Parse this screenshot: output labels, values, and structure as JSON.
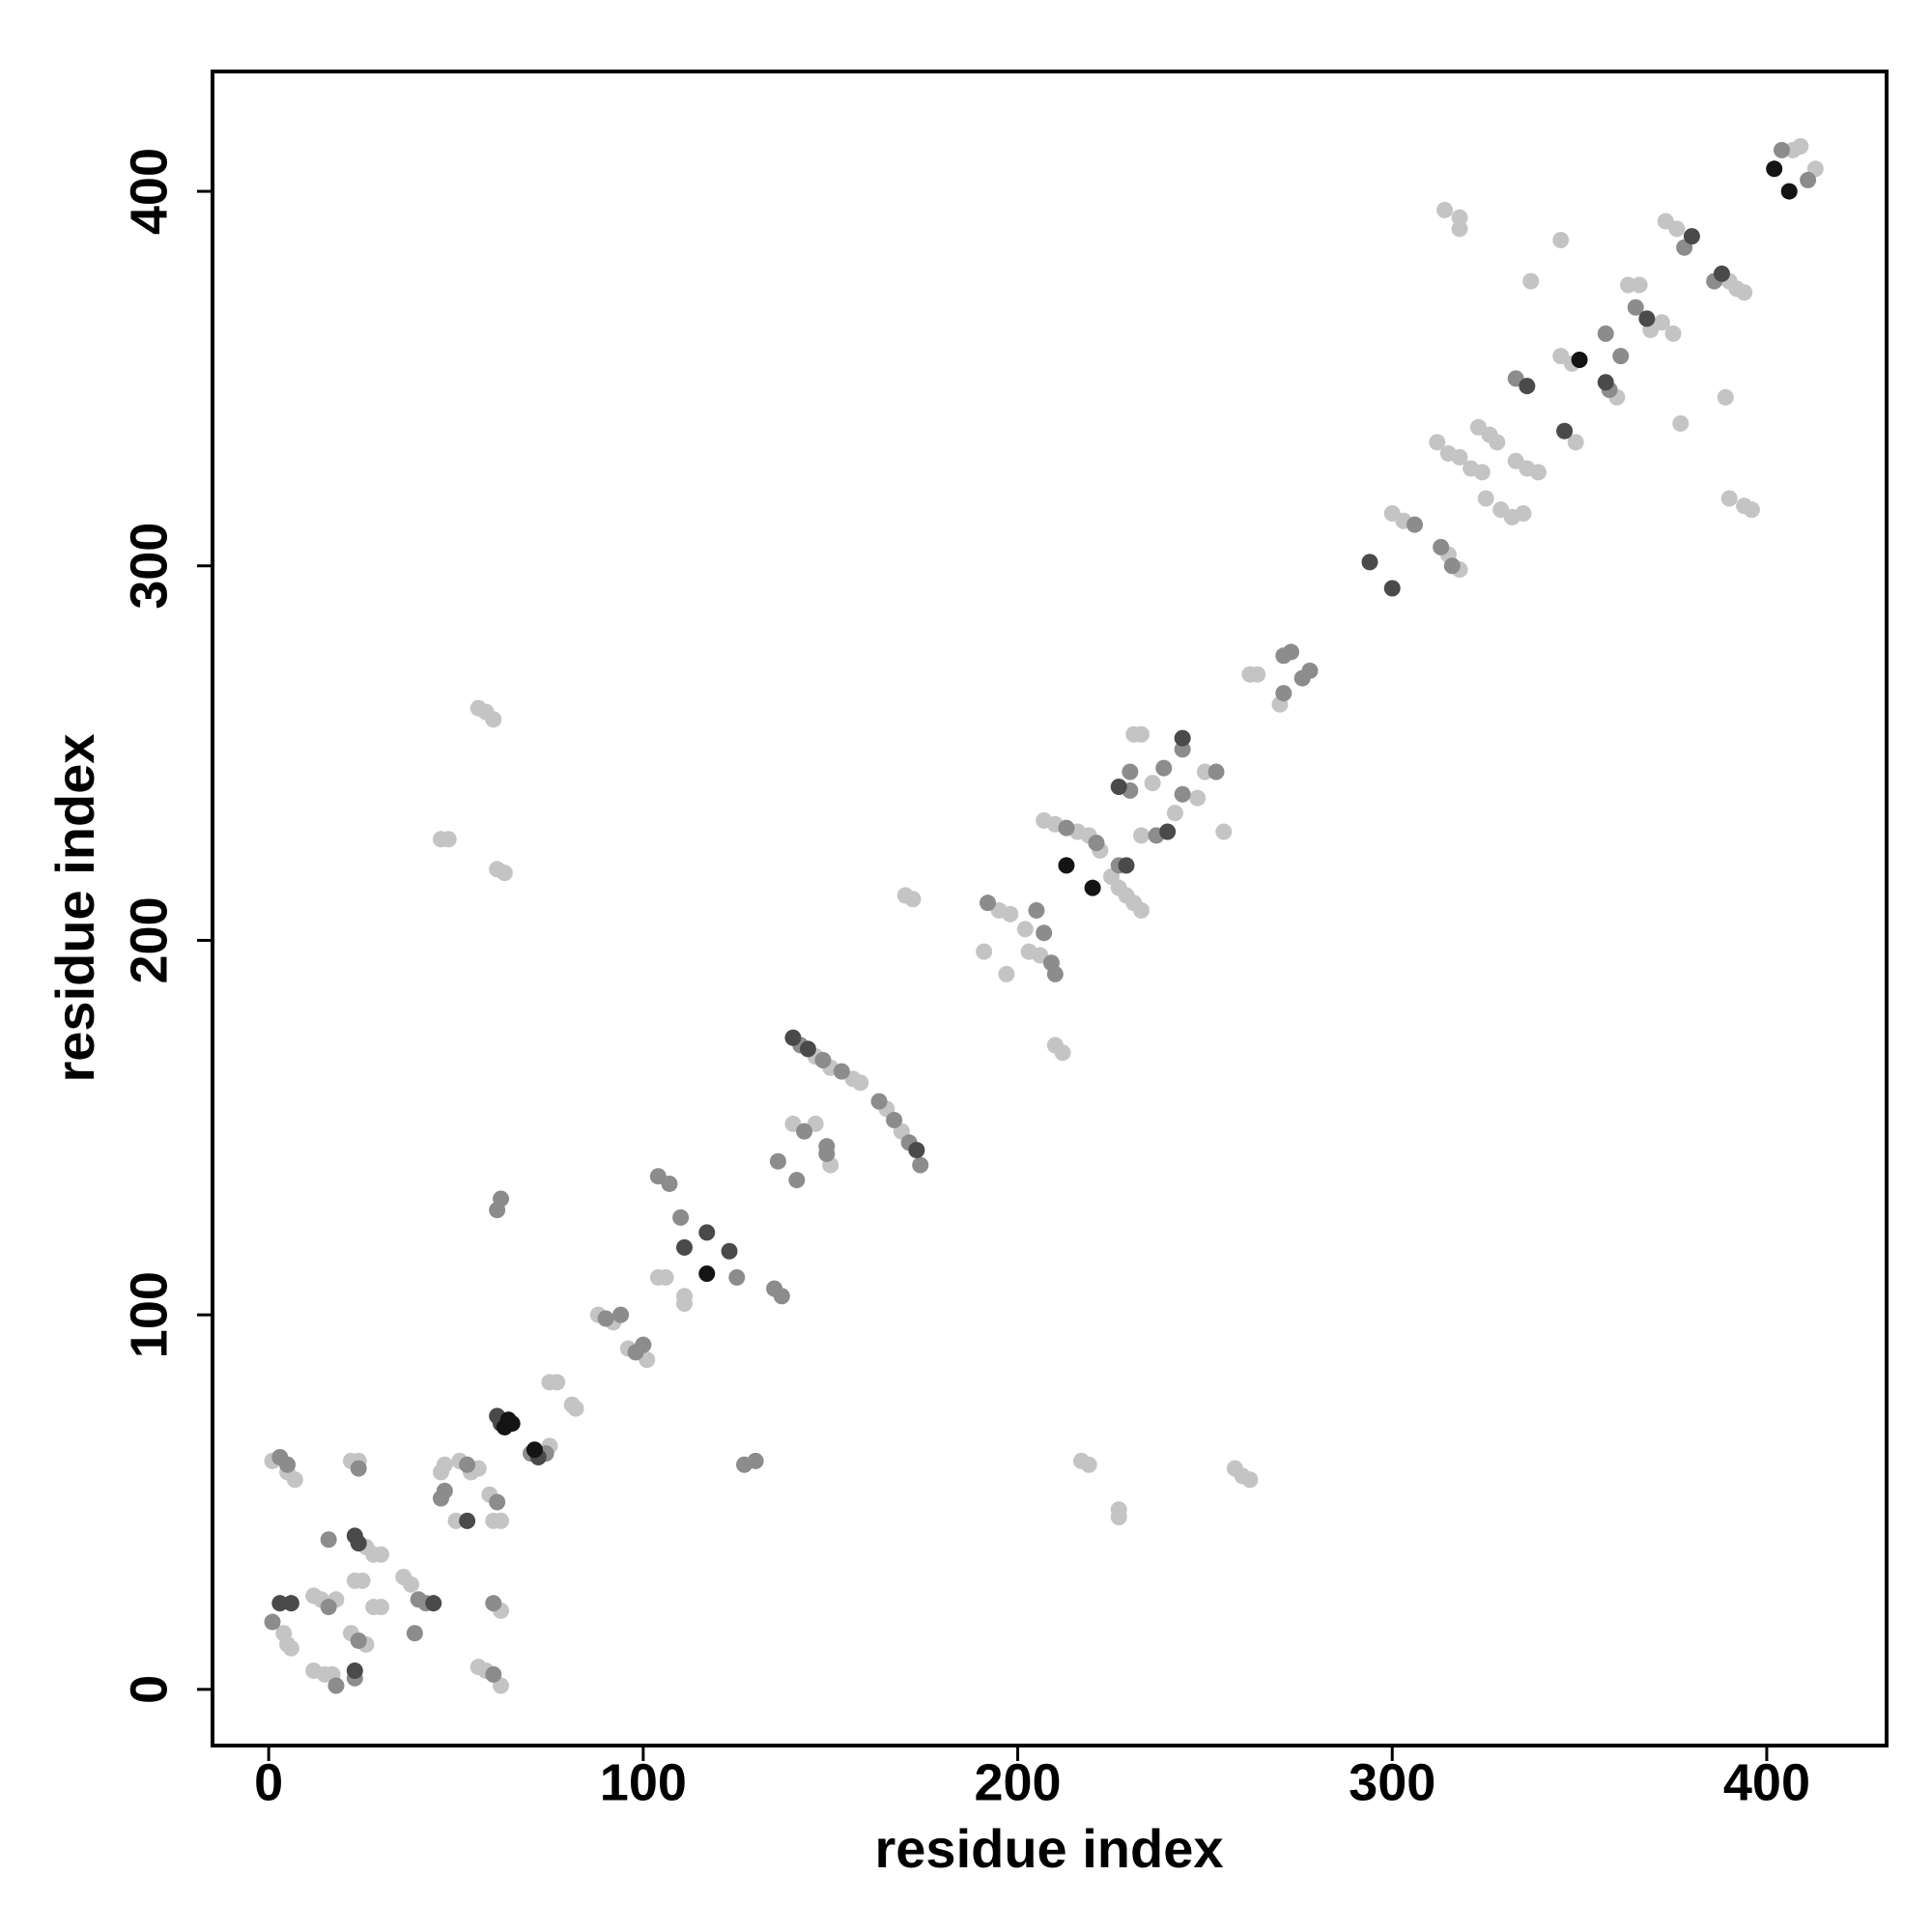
{
  "chart_data": {
    "type": "scatter",
    "xlabel": "residue index",
    "ylabel": "residue index",
    "xlim": [
      -15,
      432
    ],
    "ylim": [
      -15,
      432
    ],
    "xticks": [
      0,
      100,
      200,
      300,
      400
    ],
    "yticks": [
      0,
      100,
      200,
      300,
      400
    ],
    "grid": false,
    "series": [
      {
        "color": "#c4c4c4",
        "x": [
          1,
          5,
          7,
          5,
          4,
          6,
          12,
          14,
          18,
          12,
          15,
          17,
          22,
          24,
          26,
          28,
          30,
          22,
          26,
          23,
          25,
          28,
          30,
          36,
          38,
          46,
          47,
          50,
          51,
          54,
          56,
          56,
          58,
          62,
          59,
          60,
          62,
          62,
          75,
          75,
          77,
          81,
          82,
          88,
          92,
          96,
          101,
          104,
          106,
          111,
          111,
          140,
          146,
          146,
          150,
          156,
          158,
          150,
          165,
          169,
          170,
          172,
          195,
          198,
          191,
          197,
          202,
          203,
          206,
          210,
          212,
          207,
          210,
          216,
          219,
          222,
          225,
          227,
          229,
          231,
          233,
          231,
          233,
          233,
          236,
          242,
          248,
          250,
          255,
          262,
          264,
          270,
          300,
          303,
          315,
          318,
          312,
          315,
          318,
          321,
          324,
          323,
          326,
          328,
          325,
          329,
          332,
          335,
          333,
          336,
          339,
          314,
          318,
          318,
          337,
          345,
          349,
          345,
          348,
          360,
          363,
          366,
          369,
          372,
          375,
          373,
          376,
          377,
          390,
          392,
          394,
          389,
          390,
          394,
          396,
          407,
          409,
          413,
          46,
          48,
          56,
          58,
          60,
          61,
          63,
          217,
          219,
          227,
          227,
          258,
          260,
          262
        ],
        "values": [
          61,
          58,
          56,
          12,
          15,
          11,
          25,
          24,
          24,
          5,
          4,
          4,
          61,
          61,
          38,
          36,
          36,
          15,
          12,
          29,
          29,
          22,
          22,
          30,
          28,
          58,
          60,
          45,
          61,
          58,
          59,
          6,
          5,
          1,
          52,
          45,
          45,
          21,
          65,
          82,
          82,
          76,
          75,
          100,
          98,
          91,
          88,
          110,
          110,
          103,
          105,
          151,
          151,
          169,
          166,
          163,
          162,
          140,
          155,
          149,
          212,
          211,
          208,
          207,
          197,
          191,
          203,
          197,
          196,
          172,
          170,
          232,
          231,
          229,
          228,
          224,
          217,
          214,
          212,
          210,
          208,
          255,
          255,
          228,
          242,
          234,
          238,
          245,
          229,
          271,
          271,
          263,
          314,
          312,
          303,
          299,
          333,
          330,
          329,
          326,
          325,
          337,
          335,
          333,
          318,
          315,
          313,
          314,
          328,
          326,
          325,
          395,
          393,
          390,
          376,
          387,
          333,
          356,
          354,
          345,
          375,
          375,
          363,
          365,
          362,
          392,
          390,
          338,
          376,
          374,
          373,
          345,
          318,
          316,
          315,
          411,
          412,
          406,
          227,
          227,
          262,
          261,
          259,
          219,
          218,
          61,
          60,
          46,
          48,
          59,
          57,
          56
        ]
      },
      {
        "color": "#8c8c8c",
        "x": [
          3,
          5,
          1,
          16,
          18,
          16,
          24,
          24,
          23,
          40,
          42,
          39,
          46,
          47,
          53,
          60,
          61,
          60,
          70,
          74,
          90,
          94,
          98,
          100,
          104,
          107,
          110,
          125,
          130,
          127,
          135,
          137,
          136,
          141,
          143,
          142,
          148,
          153,
          149,
          149,
          163,
          167,
          171,
          174,
          192,
          205,
          207,
          209,
          210,
          213,
          221,
          227,
          230,
          230,
          237,
          244,
          244,
          239,
          253,
          271,
          271,
          273,
          276,
          278,
          306,
          313,
          316,
          333,
          357,
          361,
          365,
          358,
          386,
          378,
          404,
          411,
          61,
          62
        ],
        "values": [
          62,
          60,
          18,
          22,
          1,
          40,
          59,
          13,
          3,
          24,
          23,
          15,
          51,
          53,
          60,
          4,
          50,
          23,
          63,
          63,
          99,
          100,
          90,
          92,
          137,
          135,
          126,
          110,
          61,
          60,
          107,
          105,
          141,
          136,
          149,
          172,
          168,
          165,
          143,
          145,
          157,
          152,
          146,
          140,
          210,
          208,
          202,
          194,
          191,
          230,
          226,
          220,
          240,
          245,
          228,
          239,
          251,
          246,
          245,
          266,
          276,
          277,
          270,
          272,
          311,
          305,
          300,
          350,
          362,
          356,
          369,
          347,
          376,
          385,
          411,
          403,
          128,
          131
        ]
      },
      {
        "color": "#4a4a4a",
        "x": [
          3,
          6,
          23,
          24,
          23,
          44,
          53,
          61,
          62,
          72,
          111,
          117,
          123,
          140,
          144,
          173,
          227,
          229,
          240,
          244,
          294,
          300,
          336,
          346,
          357,
          368,
          380,
          388
        ],
        "values": [
          23,
          23,
          41,
          39,
          5,
          23,
          45,
          73,
          71,
          62,
          118,
          122,
          117,
          174,
          171,
          144,
          241,
          220,
          229,
          254,
          301,
          294,
          348,
          336,
          349,
          366,
          388,
          378
        ]
      },
      {
        "color": "#141414",
        "x": [
          63,
          64,
          65,
          71,
          117,
          213,
          220,
          350,
          402,
          406
        ],
        "values": [
          70,
          72,
          71,
          64,
          111,
          220,
          214,
          355,
          406,
          400
        ]
      }
    ]
  }
}
